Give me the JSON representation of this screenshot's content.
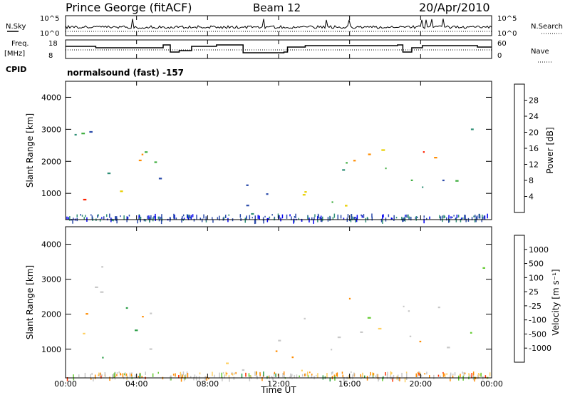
{
  "header": {
    "station": "Prince George (fitACF)",
    "beam": "Beam 12",
    "date": "20/Apr/2010"
  },
  "labels": {
    "nsky": "N.Sky",
    "nsearch": "N.Search",
    "freq": "Freq.",
    "freq_unit": "[MHz]",
    "nave": "Nave",
    "cpid": "CPID",
    "cpid_value": "normalsound (fast) -157"
  },
  "noise_ticks": {
    "left": [
      "10^5",
      "10^0"
    ],
    "right": [
      "10^5",
      "10^0"
    ]
  },
  "freq_ticks": {
    "left": [
      "18",
      "8"
    ],
    "right": [
      "60",
      "0"
    ]
  },
  "chart_data": [
    {
      "type": "heatmap",
      "name": "power",
      "ylabel": "Slant Range [km]",
      "ylim": [
        180,
        4500
      ],
      "yticks": [
        1000,
        2000,
        3000,
        4000
      ],
      "xlim": [
        0,
        24
      ],
      "colorbar_label": "Power [dB]",
      "colorbar_ticks": [
        "28",
        "24",
        "20",
        "16",
        "12",
        "8",
        "4"
      ],
      "colors": [
        "#0000ee",
        "#2a4aaa",
        "#2f8f76",
        "#3fae3f",
        "#e8cf00",
        "#ff8c00",
        "#ff2200"
      ]
    },
    {
      "type": "heatmap",
      "name": "velocity",
      "ylabel": "Slant Range [km]",
      "ylim": [
        180,
        4500
      ],
      "yticks": [
        1000,
        2000,
        3000,
        4000
      ],
      "xlim": [
        0,
        24
      ],
      "xlabel": "Time UT",
      "xticks": [
        "00:00",
        "04:00",
        "08:00",
        "12:00",
        "16:00",
        "20:00",
        "00:00"
      ],
      "colorbar_label": "Velocity [m s⁻¹]",
      "colorbar_ticks": [
        "1000",
        "500",
        "100",
        "25",
        "-25",
        "-100",
        "-500",
        "-1000"
      ],
      "colors": [
        "#1a3fa8",
        "#2f8f9f",
        "#2ea04a",
        "#66cc33",
        "#c8c8c8",
        "#ffd060",
        "#ff8c00",
        "#ff3000"
      ]
    }
  ]
}
